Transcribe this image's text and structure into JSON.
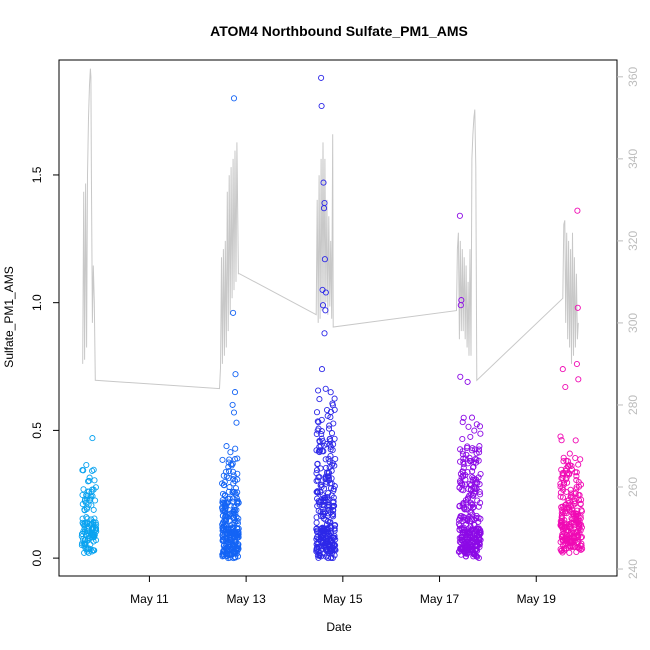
{
  "chart_data": {
    "type": "scatter",
    "title": "ATOM4 Northbound Sulfate_PM1_AMS",
    "xlabel": "Date",
    "ylabel": "Sulfate_PM1_AMS",
    "x_tick_labels": [
      "May 11",
      "May 13",
      "May 15",
      "May 17",
      "May 19"
    ],
    "x_tick_values": [
      11,
      13,
      15,
      17,
      19
    ],
    "xlim": [
      9.13,
      20.67
    ],
    "ylim": [
      -0.07,
      1.95
    ],
    "y_ticks": [
      0.0,
      0.5,
      1.0,
      1.5
    ],
    "y_tick_labels": [
      "0.0",
      "0.5",
      "1.0",
      "1.5"
    ],
    "y2_ticks": [
      240,
      260,
      280,
      300,
      320,
      340,
      360
    ],
    "y2_tick_labels": [
      "240",
      "260",
      "280",
      "300",
      "320",
      "340",
      "360"
    ],
    "y2lim": [
      238.3,
      364.1
    ],
    "grid": false,
    "legend": "none",
    "colors": {
      "line": "#c8c8c8",
      "axis": "#000000",
      "right_axis": "#bdbdbd",
      "clusters": [
        "#0aa3f0",
        "#1464f5",
        "#2d28e8",
        "#8c0ae6",
        "#f00ab4"
      ]
    },
    "clusters": [
      {
        "day_start": 9.6,
        "day_end": 9.9,
        "color": "#0aa3f0",
        "n": 120,
        "bulk_low": 0.02,
        "bulk_high": 0.4,
        "high_points": [
          {
            "x": 9.82,
            "y": 0.47
          }
        ]
      },
      {
        "day_start": 12.5,
        "day_end": 12.85,
        "color": "#1464f5",
        "n": 260,
        "bulk_low": 0.0,
        "bulk_high": 0.45,
        "high_points": [
          {
            "x": 12.75,
            "y": 1.8
          },
          {
            "x": 12.73,
            "y": 0.96
          },
          {
            "x": 12.78,
            "y": 0.72
          },
          {
            "x": 12.77,
            "y": 0.65
          },
          {
            "x": 12.72,
            "y": 0.6
          },
          {
            "x": 12.75,
            "y": 0.57
          },
          {
            "x": 12.8,
            "y": 0.53
          }
        ]
      },
      {
        "day_start": 14.45,
        "day_end": 14.85,
        "color": "#2d28e8",
        "n": 280,
        "bulk_low": 0.0,
        "bulk_high": 0.7,
        "high_points": [
          {
            "x": 14.55,
            "y": 1.88
          },
          {
            "x": 14.56,
            "y": 1.77
          },
          {
            "x": 14.6,
            "y": 1.47
          },
          {
            "x": 14.62,
            "y": 1.39
          },
          {
            "x": 14.61,
            "y": 1.37
          },
          {
            "x": 14.63,
            "y": 1.17
          },
          {
            "x": 14.58,
            "y": 1.05
          },
          {
            "x": 14.65,
            "y": 1.04
          },
          {
            "x": 14.59,
            "y": 0.99
          },
          {
            "x": 14.64,
            "y": 0.97
          },
          {
            "x": 14.62,
            "y": 0.88
          },
          {
            "x": 14.57,
            "y": 0.74
          }
        ]
      },
      {
        "day_start": 17.4,
        "day_end": 17.85,
        "color": "#8c0ae6",
        "n": 290,
        "bulk_low": 0.0,
        "bulk_high": 0.6,
        "high_points": [
          {
            "x": 17.42,
            "y": 1.34
          },
          {
            "x": 17.45,
            "y": 1.01
          },
          {
            "x": 17.44,
            "y": 0.99
          },
          {
            "x": 17.43,
            "y": 0.71
          },
          {
            "x": 17.58,
            "y": 0.69
          }
        ]
      },
      {
        "day_start": 19.5,
        "day_end": 19.95,
        "color": "#f00ab4",
        "n": 240,
        "bulk_low": 0.02,
        "bulk_high": 0.5,
        "high_points": [
          {
            "x": 19.85,
            "y": 1.36
          },
          {
            "x": 19.86,
            "y": 0.98
          },
          {
            "x": 19.84,
            "y": 0.76
          },
          {
            "x": 19.87,
            "y": 0.7
          },
          {
            "x": 19.55,
            "y": 0.74
          },
          {
            "x": 19.6,
            "y": 0.67
          }
        ]
      }
    ],
    "secondary_line": [
      {
        "x": 9.62,
        "y": 290
      },
      {
        "x": 9.64,
        "y": 332
      },
      {
        "x": 9.66,
        "y": 291
      },
      {
        "x": 9.68,
        "y": 334
      },
      {
        "x": 9.7,
        "y": 294
      },
      {
        "x": 9.72,
        "y": 336
      },
      {
        "x": 9.74,
        "y": 350
      },
      {
        "x": 9.76,
        "y": 358
      },
      {
        "x": 9.78,
        "y": 362
      },
      {
        "x": 9.79,
        "y": 360
      },
      {
        "x": 9.8,
        "y": 336
      },
      {
        "x": 9.82,
        "y": 300
      },
      {
        "x": 9.84,
        "y": 314
      },
      {
        "x": 9.86,
        "y": 305
      },
      {
        "x": 9.88,
        "y": 286
      },
      {
        "x": 12.45,
        "y": 284
      },
      {
        "x": 12.47,
        "y": 289
      },
      {
        "x": 12.49,
        "y": 316
      },
      {
        "x": 12.51,
        "y": 290
      },
      {
        "x": 12.53,
        "y": 318
      },
      {
        "x": 12.55,
        "y": 292
      },
      {
        "x": 12.57,
        "y": 320
      },
      {
        "x": 12.59,
        "y": 294
      },
      {
        "x": 12.61,
        "y": 332
      },
      {
        "x": 12.63,
        "y": 298
      },
      {
        "x": 12.65,
        "y": 336
      },
      {
        "x": 12.67,
        "y": 302
      },
      {
        "x": 12.69,
        "y": 338
      },
      {
        "x": 12.71,
        "y": 306
      },
      {
        "x": 12.73,
        "y": 340
      },
      {
        "x": 12.75,
        "y": 308
      },
      {
        "x": 12.77,
        "y": 342
      },
      {
        "x": 12.79,
        "y": 310
      },
      {
        "x": 12.81,
        "y": 344
      },
      {
        "x": 12.84,
        "y": 312
      },
      {
        "x": 12.86,
        "y": 312
      },
      {
        "x": 14.45,
        "y": 302
      },
      {
        "x": 14.47,
        "y": 330
      },
      {
        "x": 14.49,
        "y": 300
      },
      {
        "x": 14.51,
        "y": 336
      },
      {
        "x": 14.53,
        "y": 301
      },
      {
        "x": 14.55,
        "y": 340
      },
      {
        "x": 14.57,
        "y": 303
      },
      {
        "x": 14.59,
        "y": 344
      },
      {
        "x": 14.61,
        "y": 304
      },
      {
        "x": 14.63,
        "y": 340
      },
      {
        "x": 14.65,
        "y": 305
      },
      {
        "x": 14.67,
        "y": 330
      },
      {
        "x": 14.69,
        "y": 302
      },
      {
        "x": 14.71,
        "y": 326
      },
      {
        "x": 14.73,
        "y": 304
      },
      {
        "x": 14.75,
        "y": 320
      },
      {
        "x": 14.77,
        "y": 301
      },
      {
        "x": 14.79,
        "y": 346
      },
      {
        "x": 14.8,
        "y": 299
      },
      {
        "x": 17.35,
        "y": 303
      },
      {
        "x": 17.37,
        "y": 318
      },
      {
        "x": 17.39,
        "y": 322
      },
      {
        "x": 17.41,
        "y": 296
      },
      {
        "x": 17.43,
        "y": 320
      },
      {
        "x": 17.45,
        "y": 298
      },
      {
        "x": 17.47,
        "y": 318
      },
      {
        "x": 17.49,
        "y": 298
      },
      {
        "x": 17.51,
        "y": 316
      },
      {
        "x": 17.53,
        "y": 296
      },
      {
        "x": 17.55,
        "y": 314
      },
      {
        "x": 17.57,
        "y": 294
      },
      {
        "x": 17.59,
        "y": 310
      },
      {
        "x": 17.61,
        "y": 292
      },
      {
        "x": 17.63,
        "y": 318
      },
      {
        "x": 17.65,
        "y": 292
      },
      {
        "x": 17.67,
        "y": 340
      },
      {
        "x": 17.69,
        "y": 346
      },
      {
        "x": 17.71,
        "y": 350
      },
      {
        "x": 17.73,
        "y": 352
      },
      {
        "x": 17.75,
        "y": 338
      },
      {
        "x": 17.77,
        "y": 286
      },
      {
        "x": 19.55,
        "y": 306
      },
      {
        "x": 19.57,
        "y": 324
      },
      {
        "x": 19.59,
        "y": 325
      },
      {
        "x": 19.61,
        "y": 300
      },
      {
        "x": 19.63,
        "y": 322
      },
      {
        "x": 19.65,
        "y": 296
      },
      {
        "x": 19.67,
        "y": 320
      },
      {
        "x": 19.69,
        "y": 294
      },
      {
        "x": 19.71,
        "y": 318
      },
      {
        "x": 19.73,
        "y": 290
      },
      {
        "x": 19.75,
        "y": 322
      },
      {
        "x": 19.77,
        "y": 292
      },
      {
        "x": 19.79,
        "y": 316
      },
      {
        "x": 19.81,
        "y": 294
      },
      {
        "x": 19.83,
        "y": 312
      },
      {
        "x": 19.85,
        "y": 296
      },
      {
        "x": 19.87,
        "y": 300
      }
    ]
  }
}
